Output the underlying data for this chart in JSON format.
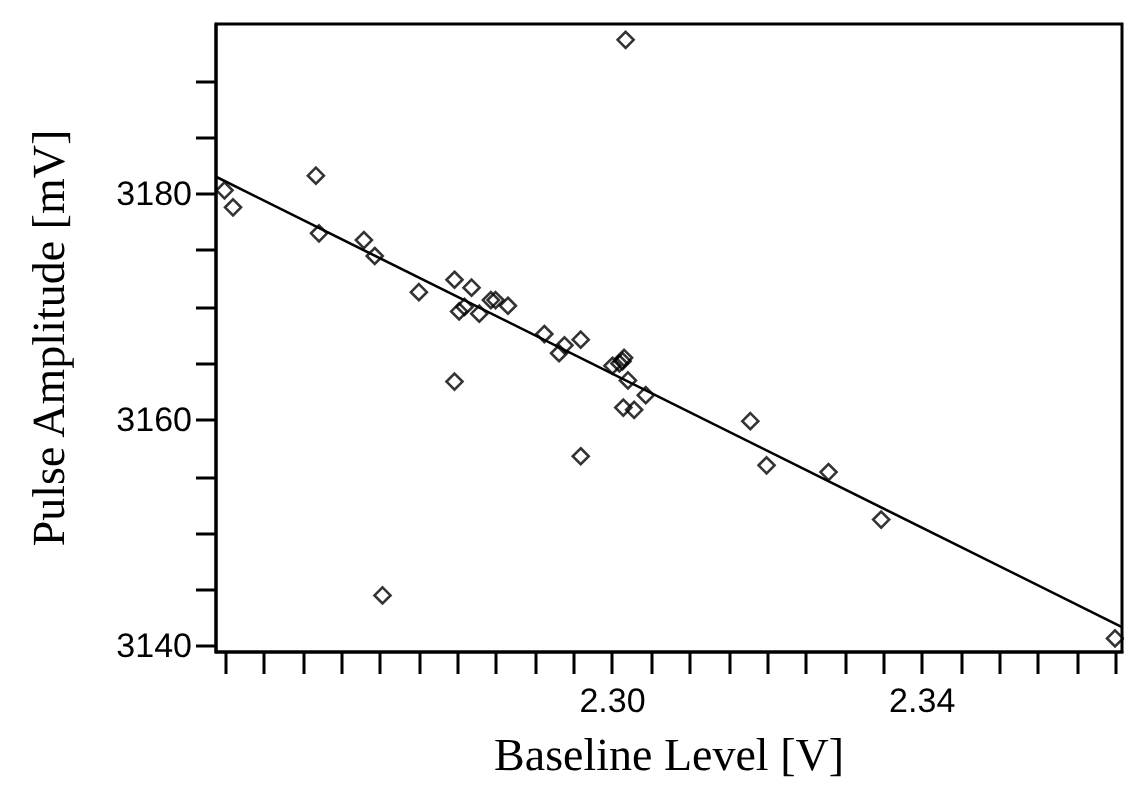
{
  "chart_data": {
    "type": "scatter",
    "xlabel": "Baseline Level [V]",
    "ylabel": "Pulse Amplitude [mV]",
    "xlim": [
      2.2488,
      2.3658
    ],
    "ylim": [
      3139.5,
      3195
    ],
    "xticks": [
      {
        "value": 2.25,
        "label": null
      },
      {
        "value": 2.255,
        "label": null
      },
      {
        "value": 2.26,
        "label": null
      },
      {
        "value": 2.265,
        "label": null
      },
      {
        "value": 2.27,
        "label": null
      },
      {
        "value": 2.275,
        "label": null
      },
      {
        "value": 2.28,
        "label": null
      },
      {
        "value": 2.285,
        "label": null
      },
      {
        "value": 2.29,
        "label": null
      },
      {
        "value": 2.295,
        "label": null
      },
      {
        "value": 2.3,
        "label": "2.30"
      },
      {
        "value": 2.305,
        "label": null
      },
      {
        "value": 2.31,
        "label": null
      },
      {
        "value": 2.315,
        "label": null
      },
      {
        "value": 2.32,
        "label": null
      },
      {
        "value": 2.325,
        "label": null
      },
      {
        "value": 2.33,
        "label": null
      },
      {
        "value": 2.335,
        "label": null
      },
      {
        "value": 2.34,
        "label": "2.34"
      },
      {
        "value": 2.345,
        "label": null
      },
      {
        "value": 2.35,
        "label": null
      },
      {
        "value": 2.355,
        "label": null
      },
      {
        "value": 2.36,
        "label": null
      },
      {
        "value": 2.365,
        "label": null
      }
    ],
    "yticks": [
      3140,
      {
        "value": 3145,
        "label": null
      },
      {
        "value": 3150,
        "label": null
      },
      {
        "value": 3155,
        "label": null
      },
      3160,
      {
        "value": 3165,
        "label": null
      },
      {
        "value": 3170,
        "label": null
      },
      {
        "value": 3175,
        "label": null
      },
      3180,
      {
        "value": 3185,
        "label": null
      },
      {
        "value": 3190,
        "label": null
      }
    ],
    "grid": false,
    "marker": "diamond",
    "series": [
      {
        "color": "#000000",
        "x": [
          2.2499,
          2.251,
          2.2617,
          2.2621,
          2.2679,
          2.2693,
          2.275,
          2.2796,
          2.2818,
          2.2802,
          2.2809,
          2.2828,
          2.2843,
          2.2849,
          2.2865,
          2.2912,
          2.2938,
          2.2931,
          2.2959,
          2.2796,
          2.3017,
          2.3,
          2.3009,
          2.3015,
          2.302,
          2.3043,
          2.3014,
          2.3028,
          2.2959,
          2.3178,
          2.3199,
          2.3279,
          2.3347,
          2.3649,
          2.2703,
          2.3013
        ],
        "values": [
          3180.3,
          3178.8,
          3181.6,
          3176.5,
          3175.9,
          3174.5,
          3171.3,
          3172.4,
          3171.7,
          3169.6,
          3170.0,
          3169.4,
          3170.6,
          3170.6,
          3170.1,
          3167.6,
          3166.6,
          3165.9,
          3167.1,
          3163.4,
          3193.6,
          3164.8,
          3165.0,
          3165.5,
          3163.5,
          3162.2,
          3161.1,
          3160.9,
          3156.8,
          3159.9,
          3156.0,
          3155.4,
          3151.2,
          3140.7,
          3144.5,
          3165.2
        ]
      },
      {
        "type": "line",
        "color": "#000000",
        "marker": "none",
        "line_style": "solid",
        "x": [
          2.2488,
          2.3658
        ],
        "values": [
          3181.5,
          3141.7
        ]
      }
    ]
  }
}
